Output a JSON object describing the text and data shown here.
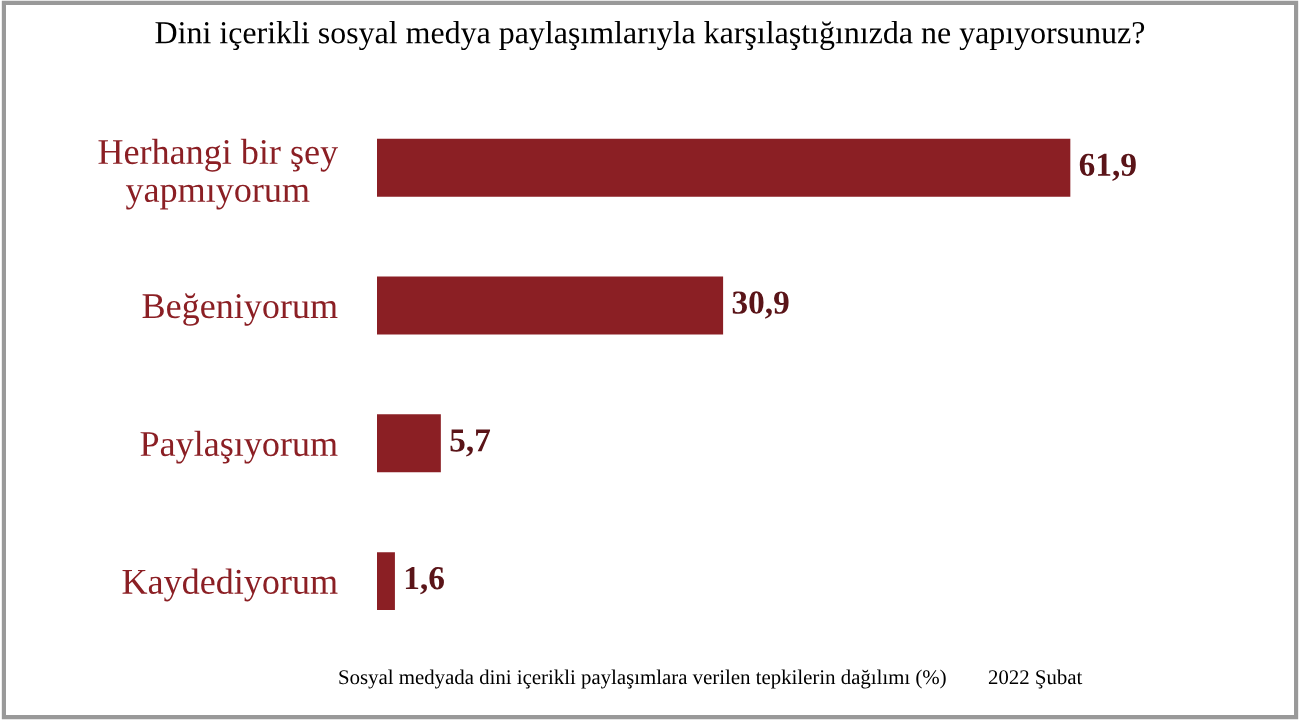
{
  "chart_data": {
    "type": "bar",
    "orientation": "horizontal",
    "title": "Dini içerikli sosyal medya paylaşımlarıyla karşılaştığınızda ne yapıyorsunuz?",
    "categories": [
      "Herhangi bir şey\nyapmıyorum",
      "Beğeniyorum",
      "Paylaşıyorum",
      "Kaydediyorum"
    ],
    "values": [
      61.9,
      30.9,
      5.7,
      1.6
    ],
    "value_labels": [
      "61,9",
      "30,9",
      "5,7",
      "1,6"
    ],
    "color": "#8b1f24",
    "annotations": [
      "Sosyal medyada dini içerikli paylaşımlara verilen tepkilerin dağılımı (%)",
      "2022 Şubat"
    ],
    "grid": false,
    "legend": false
  }
}
